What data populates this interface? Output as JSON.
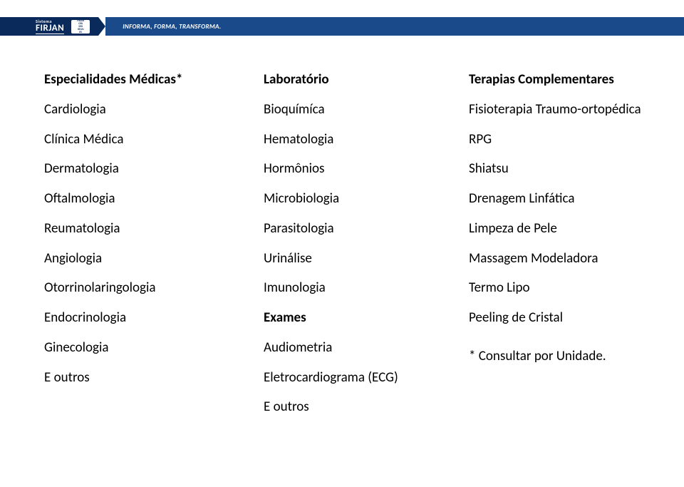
{
  "header": {
    "logo_top": "Sistema",
    "logo_main": "FIRJAN",
    "badge_lines": [
      "FIRJAN",
      "CIRJ",
      "SESI",
      "SENAI",
      "IEL"
    ],
    "tagline": "INFORMA, FORMA, TRANSFORMA."
  },
  "columns": {
    "col1": {
      "heading": "Especialidades Médicas*",
      "items": [
        "Cardiologia",
        "Clínica Médica",
        "Dermatologia",
        "Oftalmologia",
        "Reumatologia",
        "Angiologia",
        "Otorrinolaringologia",
        "Endocrinologia",
        "Ginecologia",
        "E outros"
      ]
    },
    "col2": {
      "heading": "Laboratório",
      "items": [
        "Bioquímíca",
        "Hematologia",
        "Hormônios",
        "Microbiologia",
        "Parasitologia",
        "Urinálise",
        "Imunologia"
      ],
      "heading2": "Exames",
      "items2": [
        "Audiometria",
        "Eletrocardiograma (ECG)",
        "E outros"
      ]
    },
    "col3": {
      "heading": "Terapias Complementares",
      "items": [
        "Fisioterapia Traumo-ortopédica",
        "RPG",
        "Shiatsu",
        "Drenagem Linfática",
        "Limpeza de Pele",
        "Massagem Modeladora",
        "Termo Lipo",
        "Peeling de Cristal"
      ],
      "footnote": "* Consultar por Unidade."
    }
  },
  "colors": {
    "ribbon_dark": "#0a2a5b",
    "ribbon_light": "#1a4a8a",
    "text": "#000000",
    "bg": "#ffffff"
  },
  "typography": {
    "body_fontsize_pt": 14,
    "heading_weight": "bold",
    "font_family": "Calibri"
  }
}
